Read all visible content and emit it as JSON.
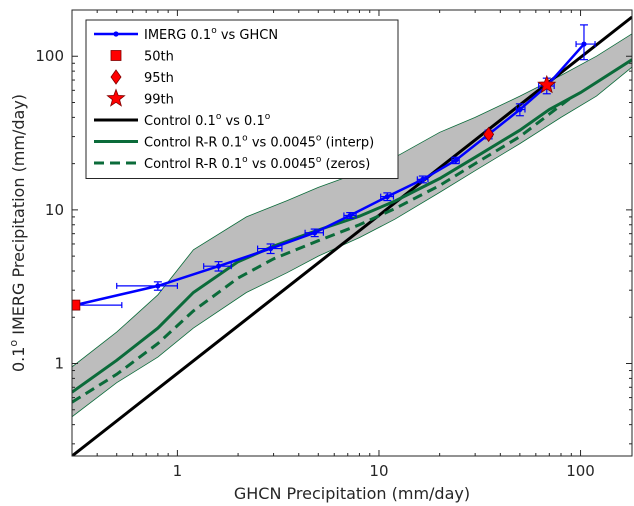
{
  "chart_data": {
    "type": "line",
    "xscale": "log",
    "yscale": "log",
    "xlim": [
      0.3,
      180
    ],
    "ylim": [
      0.25,
      200
    ],
    "xlabel": "GHCN Precipitation (mm/day)",
    "ylabel": {
      "pre": "0.1",
      "sup": "o",
      "post": " IMERG Precipitation (mm/day)"
    },
    "x_ticks": [
      1,
      10,
      100
    ],
    "x_tick_labels": [
      "1",
      "10",
      "100"
    ],
    "y_ticks": [
      1,
      10,
      100
    ],
    "y_tick_labels": [
      "1",
      "10",
      "100"
    ],
    "legend_position": "top-left",
    "legend": [
      {
        "key": "imerg",
        "parts": [
          [
            "IMERG 0.1",
            ""
          ],
          [
            "o",
            "sup"
          ],
          [
            " vs GHCN",
            ""
          ]
        ]
      },
      {
        "key": "p50",
        "parts": [
          [
            "50th",
            ""
          ]
        ]
      },
      {
        "key": "p95",
        "parts": [
          [
            "95th",
            ""
          ]
        ]
      },
      {
        "key": "p99",
        "parts": [
          [
            "99th",
            ""
          ]
        ]
      },
      {
        "key": "control",
        "parts": [
          [
            "Control 0.1",
            ""
          ],
          [
            "o",
            "sup"
          ],
          [
            " vs 0.1",
            ""
          ],
          [
            "o",
            "sup"
          ]
        ]
      },
      {
        "key": "interp",
        "parts": [
          [
            "Control R-R 0.1",
            ""
          ],
          [
            "o",
            "sup"
          ],
          [
            " vs 0.0045",
            ""
          ],
          [
            "o",
            "sup"
          ],
          [
            " (interp)",
            ""
          ]
        ]
      },
      {
        "key": "zeros",
        "parts": [
          [
            "Control R-R 0.1",
            ""
          ],
          [
            "o",
            "sup"
          ],
          [
            " vs 0.0045",
            ""
          ],
          [
            "o",
            "sup"
          ],
          [
            " (zeros)",
            ""
          ]
        ]
      }
    ],
    "colors": {
      "imerg": "#0000ff",
      "markers": "#ff0000",
      "control": "#000000",
      "control_rr": "#0b6b3a",
      "band": "#bdbdbd"
    },
    "series": [
      {
        "key": "imerg",
        "x": [
          0.31,
          0.8,
          1.6,
          2.9,
          4.8,
          7.2,
          11.0,
          16.5,
          24.0,
          35.0,
          50.0,
          68.0,
          104.0
        ],
        "y": [
          2.4,
          3.2,
          4.3,
          5.6,
          7.1,
          9.2,
          12.2,
          15.8,
          21.0,
          31.0,
          45.0,
          64.0,
          120.0
        ],
        "x_err_low": [
          0.0,
          0.5,
          1.35,
          2.5,
          4.3,
          6.7,
          10.2,
          15.5,
          23.0,
          33.5,
          48.0,
          62.0,
          95.0
        ],
        "x_err_high": [
          0.53,
          1.0,
          1.85,
          3.3,
          5.3,
          7.7,
          11.8,
          17.5,
          25.0,
          36.5,
          53.0,
          74.0,
          118.0
        ],
        "y_err_low": [
          2.4,
          3.0,
          4.0,
          5.2,
          6.7,
          8.8,
          11.5,
          15.0,
          20.0,
          29.0,
          41.0,
          57.0,
          95.0
        ],
        "y_err_high": [
          2.4,
          3.4,
          4.6,
          6.0,
          7.5,
          9.6,
          12.9,
          16.6,
          22.0,
          33.0,
          49.0,
          72.0,
          160.0
        ]
      },
      {
        "key": "control",
        "x": [
          0.3,
          180
        ],
        "y": [
          0.25,
          180
        ]
      },
      {
        "key": "interp",
        "x": [
          0.3,
          0.5,
          0.8,
          1.2,
          2,
          3,
          5,
          8,
          12,
          20,
          30,
          50,
          70,
          100,
          180
        ],
        "y": [
          0.65,
          1.05,
          1.7,
          2.9,
          4.6,
          5.8,
          7.4,
          9.1,
          11.4,
          16.0,
          22.0,
          33.0,
          45.0,
          58.0,
          95.0
        ]
      },
      {
        "key": "zeros",
        "x": [
          0.3,
          0.5,
          0.8,
          1.2,
          2,
          3,
          5,
          8,
          12,
          20,
          30,
          50,
          70,
          90
        ],
        "y": [
          0.56,
          0.85,
          1.35,
          2.2,
          3.6,
          4.8,
          6.3,
          8.0,
          10.2,
          14.4,
          20.0,
          30.0,
          42.0,
          54.0
        ]
      }
    ],
    "band": {
      "x": [
        0.3,
        0.5,
        0.8,
        1.2,
        2.2,
        3.5,
        5,
        8,
        12,
        20,
        30,
        50,
        80,
        120,
        180
      ],
      "upper": [
        0.95,
        1.6,
        2.8,
        5.5,
        9.0,
        11.5,
        14.0,
        17.5,
        22.0,
        32.0,
        40.0,
        55.0,
        75.0,
        100.0,
        140.0
      ],
      "lower": [
        0.45,
        0.75,
        1.1,
        1.7,
        2.9,
        3.9,
        5.0,
        6.6,
        8.7,
        13.0,
        18.0,
        27.0,
        40.0,
        55.0,
        85.0
      ]
    },
    "percentile_markers": [
      {
        "key": "p50",
        "shape": "square",
        "x": 0.31,
        "y": 2.4
      },
      {
        "key": "p95",
        "shape": "diamond",
        "x": 35.0,
        "y": 31.0
      },
      {
        "key": "p99",
        "shape": "star",
        "x": 68.0,
        "y": 65.0
      }
    ]
  }
}
